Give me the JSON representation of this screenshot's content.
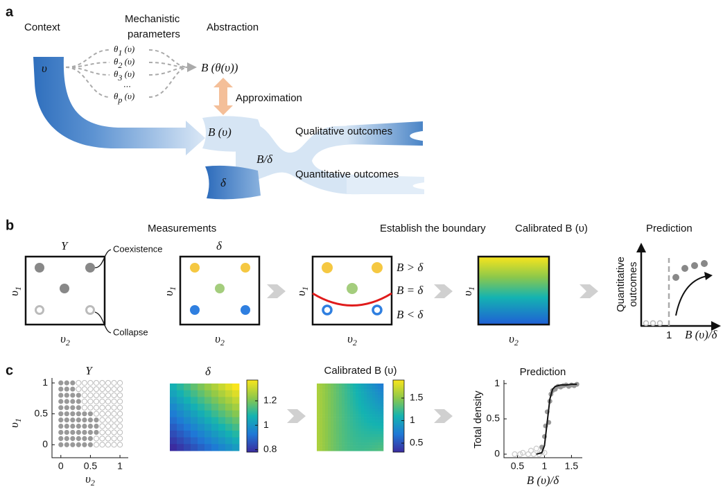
{
  "panel_a": {
    "label": "a",
    "context": "Context",
    "mechanistic": [
      "Mechanistic",
      "parameters"
    ],
    "abstraction": "Abstraction",
    "upsilon": "υ",
    "thetas": [
      {
        "sym": "θ",
        "sub": "1",
        "arg": " (υ)"
      },
      {
        "sym": "θ",
        "sub": "2",
        "arg": " (υ)"
      },
      {
        "sym": "θ",
        "sub": "3",
        "arg": " (υ)"
      },
      {
        "sym": "θ",
        "sub": "p",
        "arg": " (υ)"
      }
    ],
    "ellipsis": "...",
    "b_theta": "B (θ(υ))",
    "approximation": "Approximation",
    "b_upsilon": "B (υ)",
    "b_over_delta": "B/δ",
    "delta": "δ",
    "qualitative": "Qualitative outcomes",
    "quantitative": "Quantitative outcomes"
  },
  "panel_b": {
    "label": "b",
    "titles": [
      "Measurements",
      "Establish the boundary",
      "Calibrated B (υ)",
      "Prediction"
    ],
    "y_title": "Y",
    "delta_title": "δ",
    "coexistence": "Coexistence",
    "collapse": "Collapse",
    "axis_y": {
      "sym": "υ",
      "sub": "1"
    },
    "axis_x": {
      "sym": "υ",
      "sub": "2"
    },
    "regions": [
      "B > δ",
      "B = δ",
      "B < δ"
    ],
    "pred_ylabel": [
      "Quantitative",
      "outcomes"
    ],
    "pred_tick": 1,
    "pred_xlabel": "B (υ)/δ"
  },
  "panel_c": {
    "label": "c",
    "coexist": {
      "title": "Y",
      "xticks": [
        0,
        0.5,
        1
      ],
      "yticks": [
        0,
        0.5,
        1
      ],
      "xlim": [
        -0.15,
        1.14
      ],
      "ylim": [
        -0.21,
        1.08
      ],
      "xlabel": {
        "sym": "υ",
        "sub": "2"
      },
      "ylabel": {
        "sym": "υ",
        "sub": "1"
      }
    },
    "delta_map": {
      "title": "δ",
      "cticks": [
        0.8,
        1,
        1.2
      ],
      "clim": [
        0.78,
        1.37
      ]
    },
    "calibrated": {
      "title": "Calibrated B (υ)",
      "cticks": [
        0.5,
        1,
        1.5
      ],
      "clim": [
        0.3,
        1.9
      ]
    },
    "prediction": {
      "title": "Prediction",
      "ylabel": "Total density",
      "xlabel": "B (υ)/δ",
      "xticks": [
        0.5,
        1,
        1.5
      ],
      "yticks": [
        0,
        0.5,
        1
      ],
      "xlim": [
        0.25,
        1.7
      ],
      "ylim": [
        -0.05,
        1.05
      ],
      "collapse": {
        "x": [
          0.45,
          0.55,
          0.6,
          0.7,
          0.75,
          0.8,
          0.85,
          0.9,
          0.95,
          1.0
        ],
        "y": [
          0,
          0,
          0.02,
          0,
          0.05,
          0,
          0.08,
          0,
          0.03,
          0.02
        ]
      },
      "coexistence": {
        "x": [
          0.95,
          1.0,
          1.02,
          1.05,
          1.08,
          1.1,
          1.12,
          1.15,
          1.2,
          1.25,
          1.3,
          1.35,
          1.4,
          1.45,
          1.5,
          1.55,
          1.6
        ],
        "y": [
          0.1,
          0.25,
          0.4,
          0.6,
          0.45,
          0.75,
          0.85,
          0.9,
          0.92,
          0.96,
          0.95,
          0.97,
          0.98,
          0.96,
          0.98,
          0.97,
          0.99
        ]
      },
      "fit": {
        "x": [
          0.85,
          0.95,
          1.0,
          1.05,
          1.1,
          1.15,
          1.2,
          1.3,
          1.4,
          1.5,
          1.6
        ],
        "y": [
          0,
          0.02,
          0.12,
          0.45,
          0.78,
          0.92,
          0.96,
          0.98,
          0.98,
          0.99,
          0.99
        ]
      }
    }
  }
}
